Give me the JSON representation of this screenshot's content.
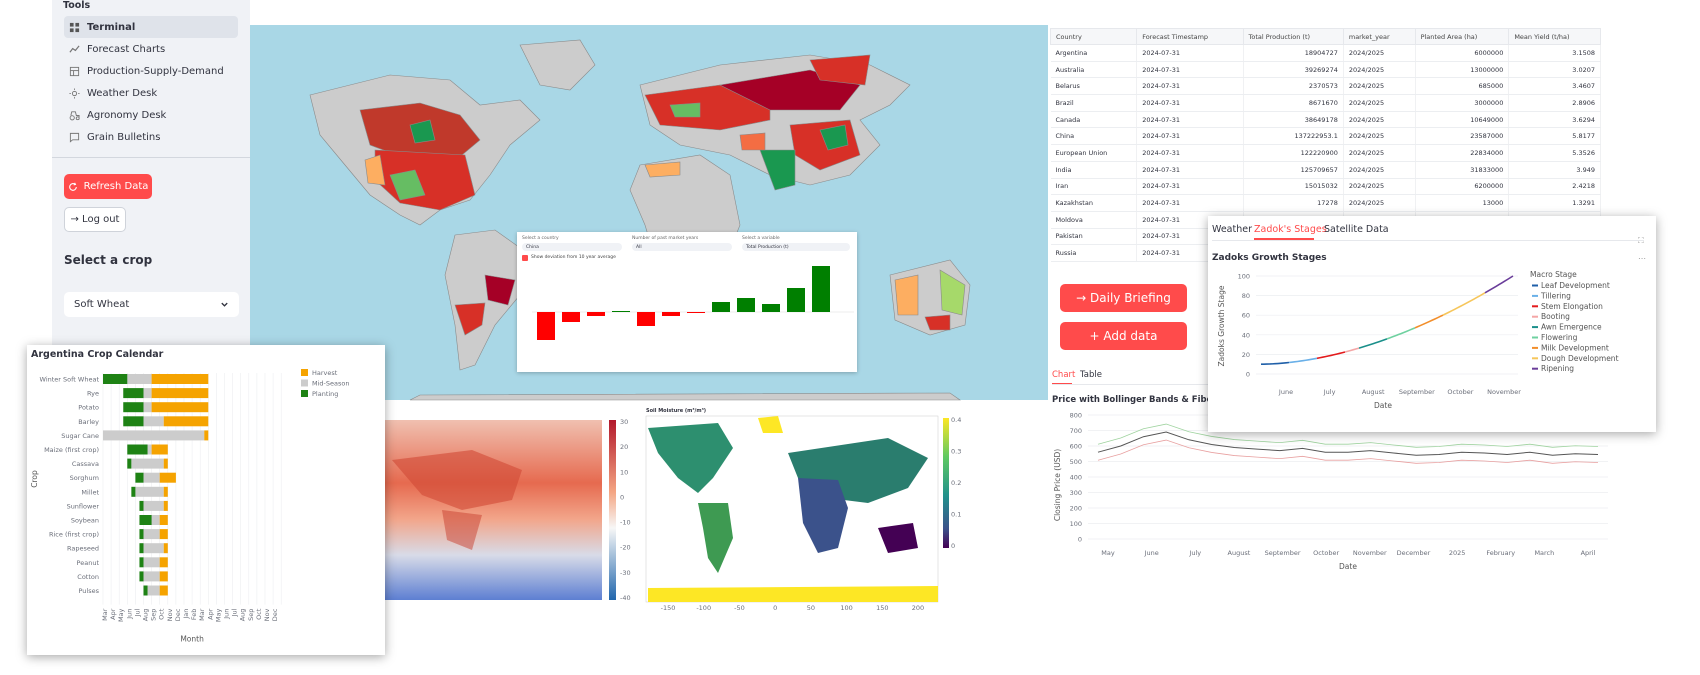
{
  "sidebar": {
    "section_title": "Tools",
    "nav": [
      {
        "label": "Terminal",
        "icon": "grid-icon",
        "active": true
      },
      {
        "label": "Forecast Charts",
        "icon": "line-chart-icon"
      },
      {
        "label": "Production-Supply-Demand",
        "icon": "table-icon"
      },
      {
        "label": "Weather Desk",
        "icon": "sun-icon"
      },
      {
        "label": "Agronomy Desk",
        "icon": "tractor-icon"
      },
      {
        "label": "Grain Bulletins",
        "icon": "message-icon"
      }
    ],
    "refresh_label": "Refresh Data",
    "logout_label": "→ Log out",
    "crop_heading": "Select a crop",
    "crop_value": "Soft Wheat"
  },
  "inline_chart": {
    "country_label": "Select a country",
    "country_value": "China",
    "years_label": "Number of past market years",
    "years_value": "All",
    "variable_label": "Select a variable",
    "variable_value": "Total Production (t)",
    "checkbox_label": "Show deviation from 10 year average",
    "values": [
      -14,
      -5,
      -2,
      0.5,
      -7,
      -2,
      -0.5,
      5,
      7,
      4,
      12,
      23
    ]
  },
  "table": {
    "columns": [
      "Country",
      "Forecast Timestamp",
      "Total Production (t)",
      "market_year",
      "Planted Area (ha)",
      "Mean Yield (t/ha)"
    ],
    "rows": [
      [
        "Argentina",
        "2024-07-31",
        "18904727",
        "2024/2025",
        "6000000",
        "3.1508"
      ],
      [
        "Australia",
        "2024-07-31",
        "39269274",
        "2024/2025",
        "13000000",
        "3.0207"
      ],
      [
        "Belarus",
        "2024-07-31",
        "2370573",
        "2024/2025",
        "685000",
        "3.4607"
      ],
      [
        "Brazil",
        "2024-07-31",
        "8671670",
        "2024/2025",
        "3000000",
        "2.8906"
      ],
      [
        "Canada",
        "2024-07-31",
        "38649178",
        "2024/2025",
        "10649000",
        "3.6294"
      ],
      [
        "China",
        "2024-07-31",
        "137222953.1",
        "2024/2025",
        "23587000",
        "5.8177"
      ],
      [
        "European Union",
        "2024-07-31",
        "122220900",
        "2024/2025",
        "22834000",
        "5.3526"
      ],
      [
        "India",
        "2024-07-31",
        "125709657",
        "2024/2025",
        "31833000",
        "3.949"
      ],
      [
        "Iran",
        "2024-07-31",
        "15015032",
        "2024/2025",
        "6200000",
        "2.4218"
      ],
      [
        "Kazakhstan",
        "2024-07-31",
        "17278",
        "2024/2025",
        "13000",
        "1.3291"
      ],
      [
        "Moldova",
        "2024-07-31",
        "",
        "",
        "",
        ""
      ],
      [
        "Pakistan",
        "2024-07-31",
        "",
        "",
        "",
        ""
      ],
      [
        "Russia",
        "2024-07-31",
        "",
        "",
        "",
        ""
      ]
    ]
  },
  "actions": {
    "daily_briefing": "→ Daily Briefing",
    "add_data": "+ Add data"
  },
  "price_panel": {
    "tabs": [
      "Chart",
      "Table"
    ],
    "title": "Price with Bollinger Bands & Fibonacci Retracement",
    "ylabel": "Closing Price (USD)",
    "xlabel": "Date",
    "yticks": [
      "800",
      "700",
      "600",
      "500",
      "400",
      "300",
      "200",
      "100",
      "0"
    ],
    "xticks": [
      "May",
      "June",
      "July",
      "August",
      "September",
      "October",
      "November",
      "December",
      "2025",
      "February",
      "March",
      "April"
    ]
  },
  "zadoks": {
    "tabs": [
      "Weather",
      "Zadok's Stages",
      "Satellite Data"
    ],
    "title": "Zadoks Growth Stages",
    "ylabel": "Zadoks Growth Stage",
    "xlabel": "Date",
    "yticks": [
      "100",
      "80",
      "60",
      "40",
      "20",
      "0"
    ],
    "xticks": [
      "June",
      "July",
      "August",
      "September",
      "October",
      "November"
    ],
    "legend_title": "Macro Stage",
    "legend": [
      {
        "name": "Leaf Development",
        "color": "#1f5fa8"
      },
      {
        "name": "Tillering",
        "color": "#6ab0e8"
      },
      {
        "name": "Stem Elongation",
        "color": "#e31a1c"
      },
      {
        "name": "Booting",
        "color": "#f4a6a6"
      },
      {
        "name": "Awn Emergence",
        "color": "#1a8f8a"
      },
      {
        "name": "Flowering",
        "color": "#6fd1a0"
      },
      {
        "name": "Milk Development",
        "color": "#f28e2b"
      },
      {
        "name": "Dough Development",
        "color": "#f6c65b"
      },
      {
        "name": "Ripening",
        "color": "#6a3d9a"
      }
    ]
  },
  "crop_calendar": {
    "title": "Argentina Crop Calendar",
    "ylabel": "Crop",
    "xlabel": "Month",
    "legend": [
      {
        "name": "Harvest",
        "color": "#f5a300"
      },
      {
        "name": "Mid-Season",
        "color": "#cccccc"
      },
      {
        "name": "Planting",
        "color": "#1e8214"
      }
    ],
    "months": [
      "Mar",
      "Apr",
      "May",
      "Jun",
      "Jul",
      "Aug",
      "Sep",
      "Oct",
      "Nov",
      "Dec",
      "Jan",
      "Feb",
      "Mar",
      "Apr",
      "May",
      "Jun",
      "Jul",
      "Aug",
      "Sep",
      "Oct",
      "Nov",
      "Dec"
    ],
    "crops": [
      {
        "name": "Winter Soft Wheat",
        "p": [
          0,
          3
        ],
        "m": [
          3,
          6
        ],
        "h": [
          6,
          13
        ]
      },
      {
        "name": "Rye",
        "p": [
          2.5,
          5
        ],
        "m": [
          5,
          6
        ],
        "h": [
          6,
          13
        ]
      },
      {
        "name": "Potato",
        "p": [
          2.5,
          5
        ],
        "m": [
          5,
          6
        ],
        "h": [
          6,
          13
        ]
      },
      {
        "name": "Barley",
        "p": [
          2.5,
          5
        ],
        "m": [
          5,
          7.5
        ],
        "h": [
          7.5,
          13
        ]
      },
      {
        "name": "Sugar Cane",
        "p": [
          0,
          0
        ],
        "m": [
          0,
          12.5
        ],
        "h": [
          12.5,
          13
        ]
      },
      {
        "name": "Maize (first crop)",
        "p": [
          3,
          5.5
        ],
        "m": [
          5.5,
          6
        ],
        "h": [
          6,
          8
        ]
      },
      {
        "name": "Cassava",
        "p": [
          3,
          3.5
        ],
        "m": [
          3.5,
          7.5
        ],
        "h": [
          7.5,
          8
        ]
      },
      {
        "name": "Sorghum",
        "p": [
          4,
          5
        ],
        "m": [
          5,
          7
        ],
        "h": [
          7,
          9
        ]
      },
      {
        "name": "Millet",
        "p": [
          3.5,
          4
        ],
        "m": [
          4,
          7.5
        ],
        "h": [
          7.5,
          8
        ]
      },
      {
        "name": "Sunflower",
        "p": [
          4.5,
          5
        ],
        "m": [
          5,
          7.5
        ],
        "h": [
          7.5,
          8
        ]
      },
      {
        "name": "Soybean",
        "p": [
          4.5,
          6
        ],
        "m": [
          6,
          7
        ],
        "h": [
          7,
          8
        ]
      },
      {
        "name": "Rice (first crop)",
        "p": [
          4.5,
          5
        ],
        "m": [
          5,
          7
        ],
        "h": [
          7,
          8
        ]
      },
      {
        "name": "Rapeseed",
        "p": [
          4.5,
          5
        ],
        "m": [
          5,
          7.5
        ],
        "h": [
          7.5,
          8
        ]
      },
      {
        "name": "Peanut",
        "p": [
          4.5,
          5
        ],
        "m": [
          5,
          7
        ],
        "h": [
          7,
          8
        ]
      },
      {
        "name": "Cotton",
        "p": [
          4.5,
          5
        ],
        "m": [
          5,
          7
        ],
        "h": [
          7,
          8
        ]
      },
      {
        "name": "Pulses",
        "p": [
          5,
          5.5
        ],
        "m": [
          5.5,
          7
        ],
        "h": [
          7,
          8
        ]
      }
    ]
  },
  "temp_map": {
    "ticks": [
      "30",
      "20",
      "10",
      "0",
      "-10",
      "-20",
      "-30",
      "-40"
    ]
  },
  "soil_map": {
    "title": "Soil Moisture (m³/m³)",
    "ticks": [
      "0.4",
      "0.3",
      "0.2",
      "0.1",
      "0"
    ],
    "xticks": [
      "-150",
      "-100",
      "-50",
      "0",
      "50",
      "100",
      "150",
      "200"
    ]
  },
  "colors": {
    "accent": "#ff4b4b",
    "sidebar_bg": "#f0f2f6",
    "ocean": "#a9d7e6",
    "green": "#007f00",
    "red": "#ff0000"
  }
}
